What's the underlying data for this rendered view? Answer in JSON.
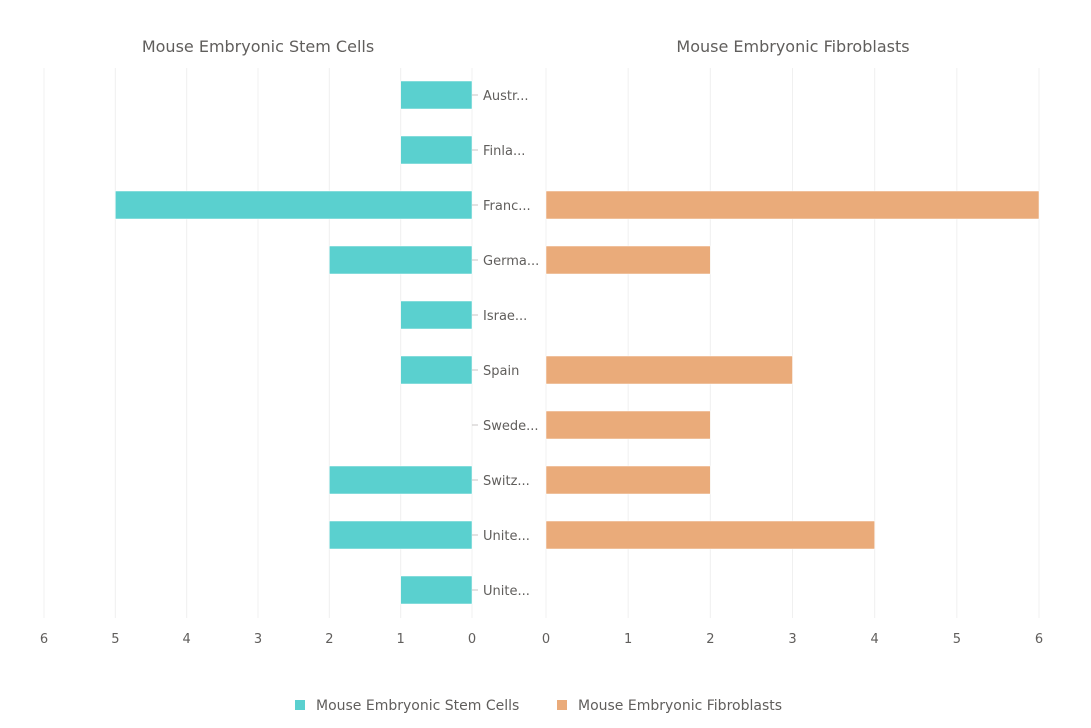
{
  "chart_data": {
    "type": "bar",
    "orientation": "horizontal",
    "layout": "butterfly",
    "categories": [
      "Austr...",
      "Finla...",
      "Franc...",
      "Germa...",
      "Israe...",
      "Spain",
      "Swede...",
      "Switz...",
      "Unite...",
      "Unite..."
    ],
    "series": [
      {
        "name": "Mouse Embryonic Stem Cells",
        "color": "#5ad0cf",
        "values": [
          1,
          1,
          5,
          2,
          1,
          1,
          0,
          2,
          2,
          1
        ]
      },
      {
        "name": "Mouse Embryonic Fibroblasts",
        "color": "#eaab7a",
        "values": [
          0,
          0,
          6,
          2,
          0,
          3,
          2,
          2,
          4,
          0
        ]
      }
    ],
    "panels": [
      {
        "title": "Mouse Embryonic Stem Cells",
        "xlim": [
          0,
          6
        ],
        "direction": "reversed",
        "ticks": [
          "0",
          "1",
          "2",
          "3",
          "4",
          "5",
          "6"
        ]
      },
      {
        "title": "Mouse Embryonic Fibroblasts",
        "xlim": [
          0,
          6
        ],
        "direction": "normal",
        "ticks": [
          "0",
          "1",
          "2",
          "3",
          "4",
          "5",
          "6"
        ]
      }
    ],
    "grid": true,
    "legend": {
      "position": "bottom-center",
      "entries": [
        "Mouse Embryonic Stem Cells",
        "Mouse Embryonic Fibroblasts"
      ]
    }
  }
}
